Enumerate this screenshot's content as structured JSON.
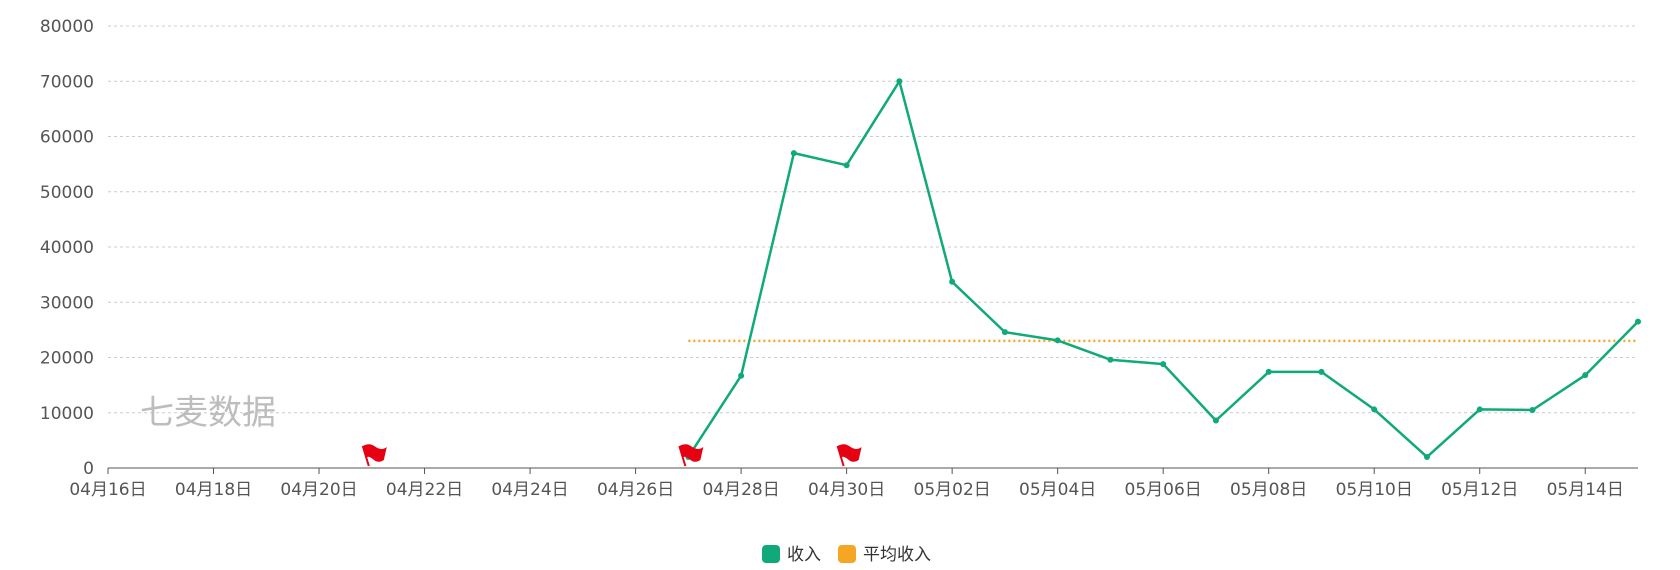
{
  "chart_data": {
    "type": "line",
    "x": [
      "04月16日",
      "04月17日",
      "04月18日",
      "04月19日",
      "04月20日",
      "04月21日",
      "04月22日",
      "04月23日",
      "04月24日",
      "04月25日",
      "04月26日",
      "04月27日",
      "04月28日",
      "04月29日",
      "04月30日",
      "05月01日",
      "05月02日",
      "05月03日",
      "05月04日",
      "05月05日",
      "05月06日",
      "05月07日",
      "05月08日",
      "05月09日",
      "05月10日",
      "05月11日",
      "05月12日",
      "05月13日",
      "05月14日",
      "05月15日"
    ],
    "x_tick_labels": [
      "04月16日",
      "04月18日",
      "04月20日",
      "04月22日",
      "04月24日",
      "04月26日",
      "04月28日",
      "04月30日",
      "05月02日",
      "05月04日",
      "05月06日",
      "05月08日",
      "05月10日",
      "05月12日",
      "05月14日"
    ],
    "y_ticks": [
      "0",
      "10000",
      "20000",
      "30000",
      "40000",
      "50000",
      "60000",
      "70000",
      "80000"
    ],
    "ylim": [
      0,
      80000
    ],
    "grid": true,
    "legend_position": "bottom",
    "series": [
      {
        "name": "收入",
        "color": "#10a97a",
        "values": [
          null,
          null,
          null,
          null,
          null,
          null,
          null,
          null,
          null,
          null,
          null,
          2000,
          16700,
          57000,
          54800,
          70000,
          33700,
          24600,
          23100,
          19600,
          18800,
          8600,
          17400,
          17400,
          10600,
          2000,
          10600,
          10500,
          16800,
          26500
        ]
      },
      {
        "name": "平均收入",
        "color": "#f5a623",
        "constant": 23000,
        "from": "04月27日",
        "to": "05月15日"
      }
    ],
    "flag_markers": [
      "04月21日",
      "04月27日",
      "04月30日"
    ],
    "flag_color": "#e60012",
    "watermark": "七麦数据"
  }
}
